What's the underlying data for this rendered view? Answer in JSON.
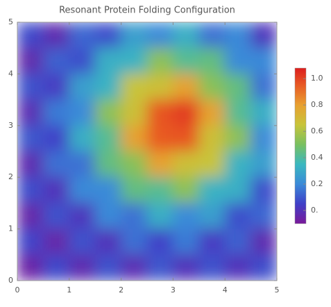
{
  "chart_data": {
    "type": "heatmap",
    "title": "Resonant Protein Folding Configuration",
    "x": [
      0.25,
      0.75,
      1.25,
      1.75,
      2.25,
      2.75,
      3.25,
      3.75,
      4.25,
      4.75
    ],
    "y": [
      4.75,
      4.25,
      3.75,
      3.25,
      2.75,
      2.25,
      1.75,
      1.25,
      0.75,
      0.25
    ],
    "z": [
      [
        0.07,
        -0.03,
        0.13,
        0.08,
        0.27,
        0.2,
        0.32,
        0.15,
        0.2,
        0.01
      ],
      [
        -0.04,
        0.12,
        0.08,
        0.32,
        0.33,
        0.54,
        0.42,
        0.45,
        0.2,
        0.2
      ],
      [
        0.09,
        0.03,
        0.27,
        0.33,
        0.65,
        0.67,
        0.79,
        0.53,
        0.45,
        0.15
      ],
      [
        -0.02,
        0.17,
        0.2,
        0.54,
        0.67,
        0.96,
        1.02,
        0.79,
        0.42,
        0.32
      ],
      [
        0.1,
        0.05,
        0.32,
        0.42,
        0.79,
        0.95,
        0.96,
        0.67,
        0.54,
        0.2
      ],
      [
        -0.03,
        0.15,
        0.15,
        0.45,
        0.53,
        0.79,
        0.67,
        0.65,
        0.33,
        0.27
      ],
      [
        0.08,
        0.0,
        0.2,
        0.2,
        0.45,
        0.42,
        0.54,
        0.33,
        0.32,
        0.08
      ],
      [
        -0.05,
        0.09,
        0.01,
        0.2,
        0.15,
        0.32,
        0.2,
        0.27,
        0.08,
        0.13
      ],
      [
        0.06,
        -0.05,
        0.09,
        0.0,
        0.15,
        0.05,
        0.17,
        0.03,
        0.12,
        -0.03
      ],
      [
        -0.06,
        0.07,
        -0.03,
        0.09,
        -0.02,
        0.1,
        0.0,
        0.09,
        0.0,
        0.08
      ]
    ],
    "xlim": [
      0,
      5
    ],
    "xticks": [
      0,
      1,
      2,
      3,
      4,
      5
    ],
    "ylim": [
      0,
      5
    ],
    "yticks": [
      0,
      1,
      2,
      3,
      4,
      5
    ],
    "colorbar_lim": [
      -0.1,
      1.08
    ],
    "colorbar_ticks": [
      {
        "value": 0,
        "label": "0."
      },
      0.2,
      0.4,
      0.6,
      0.8,
      {
        "value": 1,
        "label": "1.0"
      }
    ],
    "colorscale": [
      [
        -0.1,
        "#7a1a9a"
      ],
      [
        0.05,
        "#3f3fc8"
      ],
      [
        0.2,
        "#3a8ad8"
      ],
      [
        0.35,
        "#3ab8c0"
      ],
      [
        0.5,
        "#78c060"
      ],
      [
        0.65,
        "#c8c43a"
      ],
      [
        0.8,
        "#e8a030"
      ],
      [
        0.95,
        "#e85a24"
      ],
      [
        1.08,
        "#dc1e1e"
      ]
    ]
  }
}
